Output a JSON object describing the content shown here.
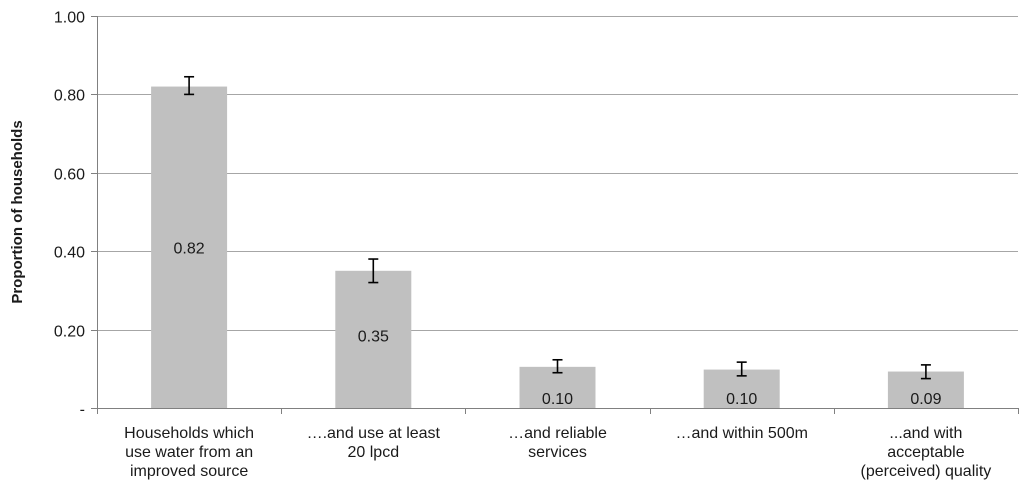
{
  "chart_data": {
    "type": "bar",
    "title": "",
    "xlabel": "",
    "ylabel": "Proportion of households",
    "ylim": [
      0,
      1.0
    ],
    "yticks": [
      {
        "value": 0,
        "label": "-"
      },
      {
        "value": 0.2,
        "label": "0.20"
      },
      {
        "value": 0.4,
        "label": "0.40"
      },
      {
        "value": 0.6,
        "label": "0.60"
      },
      {
        "value": 0.8,
        "label": "0.80"
      },
      {
        "value": 1.0,
        "label": "1.00"
      }
    ],
    "categories": [
      [
        "Households which",
        "use water from an",
        "improved source"
      ],
      [
        "….and use at least",
        "20 lpcd"
      ],
      [
        "…and reliable",
        "services"
      ],
      [
        "…and within 500m"
      ],
      [
        "...and with",
        "acceptable",
        "(perceived) quality"
      ]
    ],
    "values": [
      0.82,
      0.35,
      0.105,
      0.098,
      0.093
    ],
    "data_labels": [
      "0.82",
      "0.35",
      "0.10",
      "0.10",
      "0.09"
    ],
    "error_bars": [
      {
        "low": 0.8,
        "high": 0.845
      },
      {
        "low": 0.32,
        "high": 0.38
      },
      {
        "low": 0.09,
        "high": 0.123
      },
      {
        "low": 0.082,
        "high": 0.117
      },
      {
        "low": 0.075,
        "high": 0.11
      }
    ],
    "grid": true,
    "bar_color": "#c0c0c0",
    "grid_color": "#a6a6a6",
    "errorbar_color": "#000000"
  }
}
